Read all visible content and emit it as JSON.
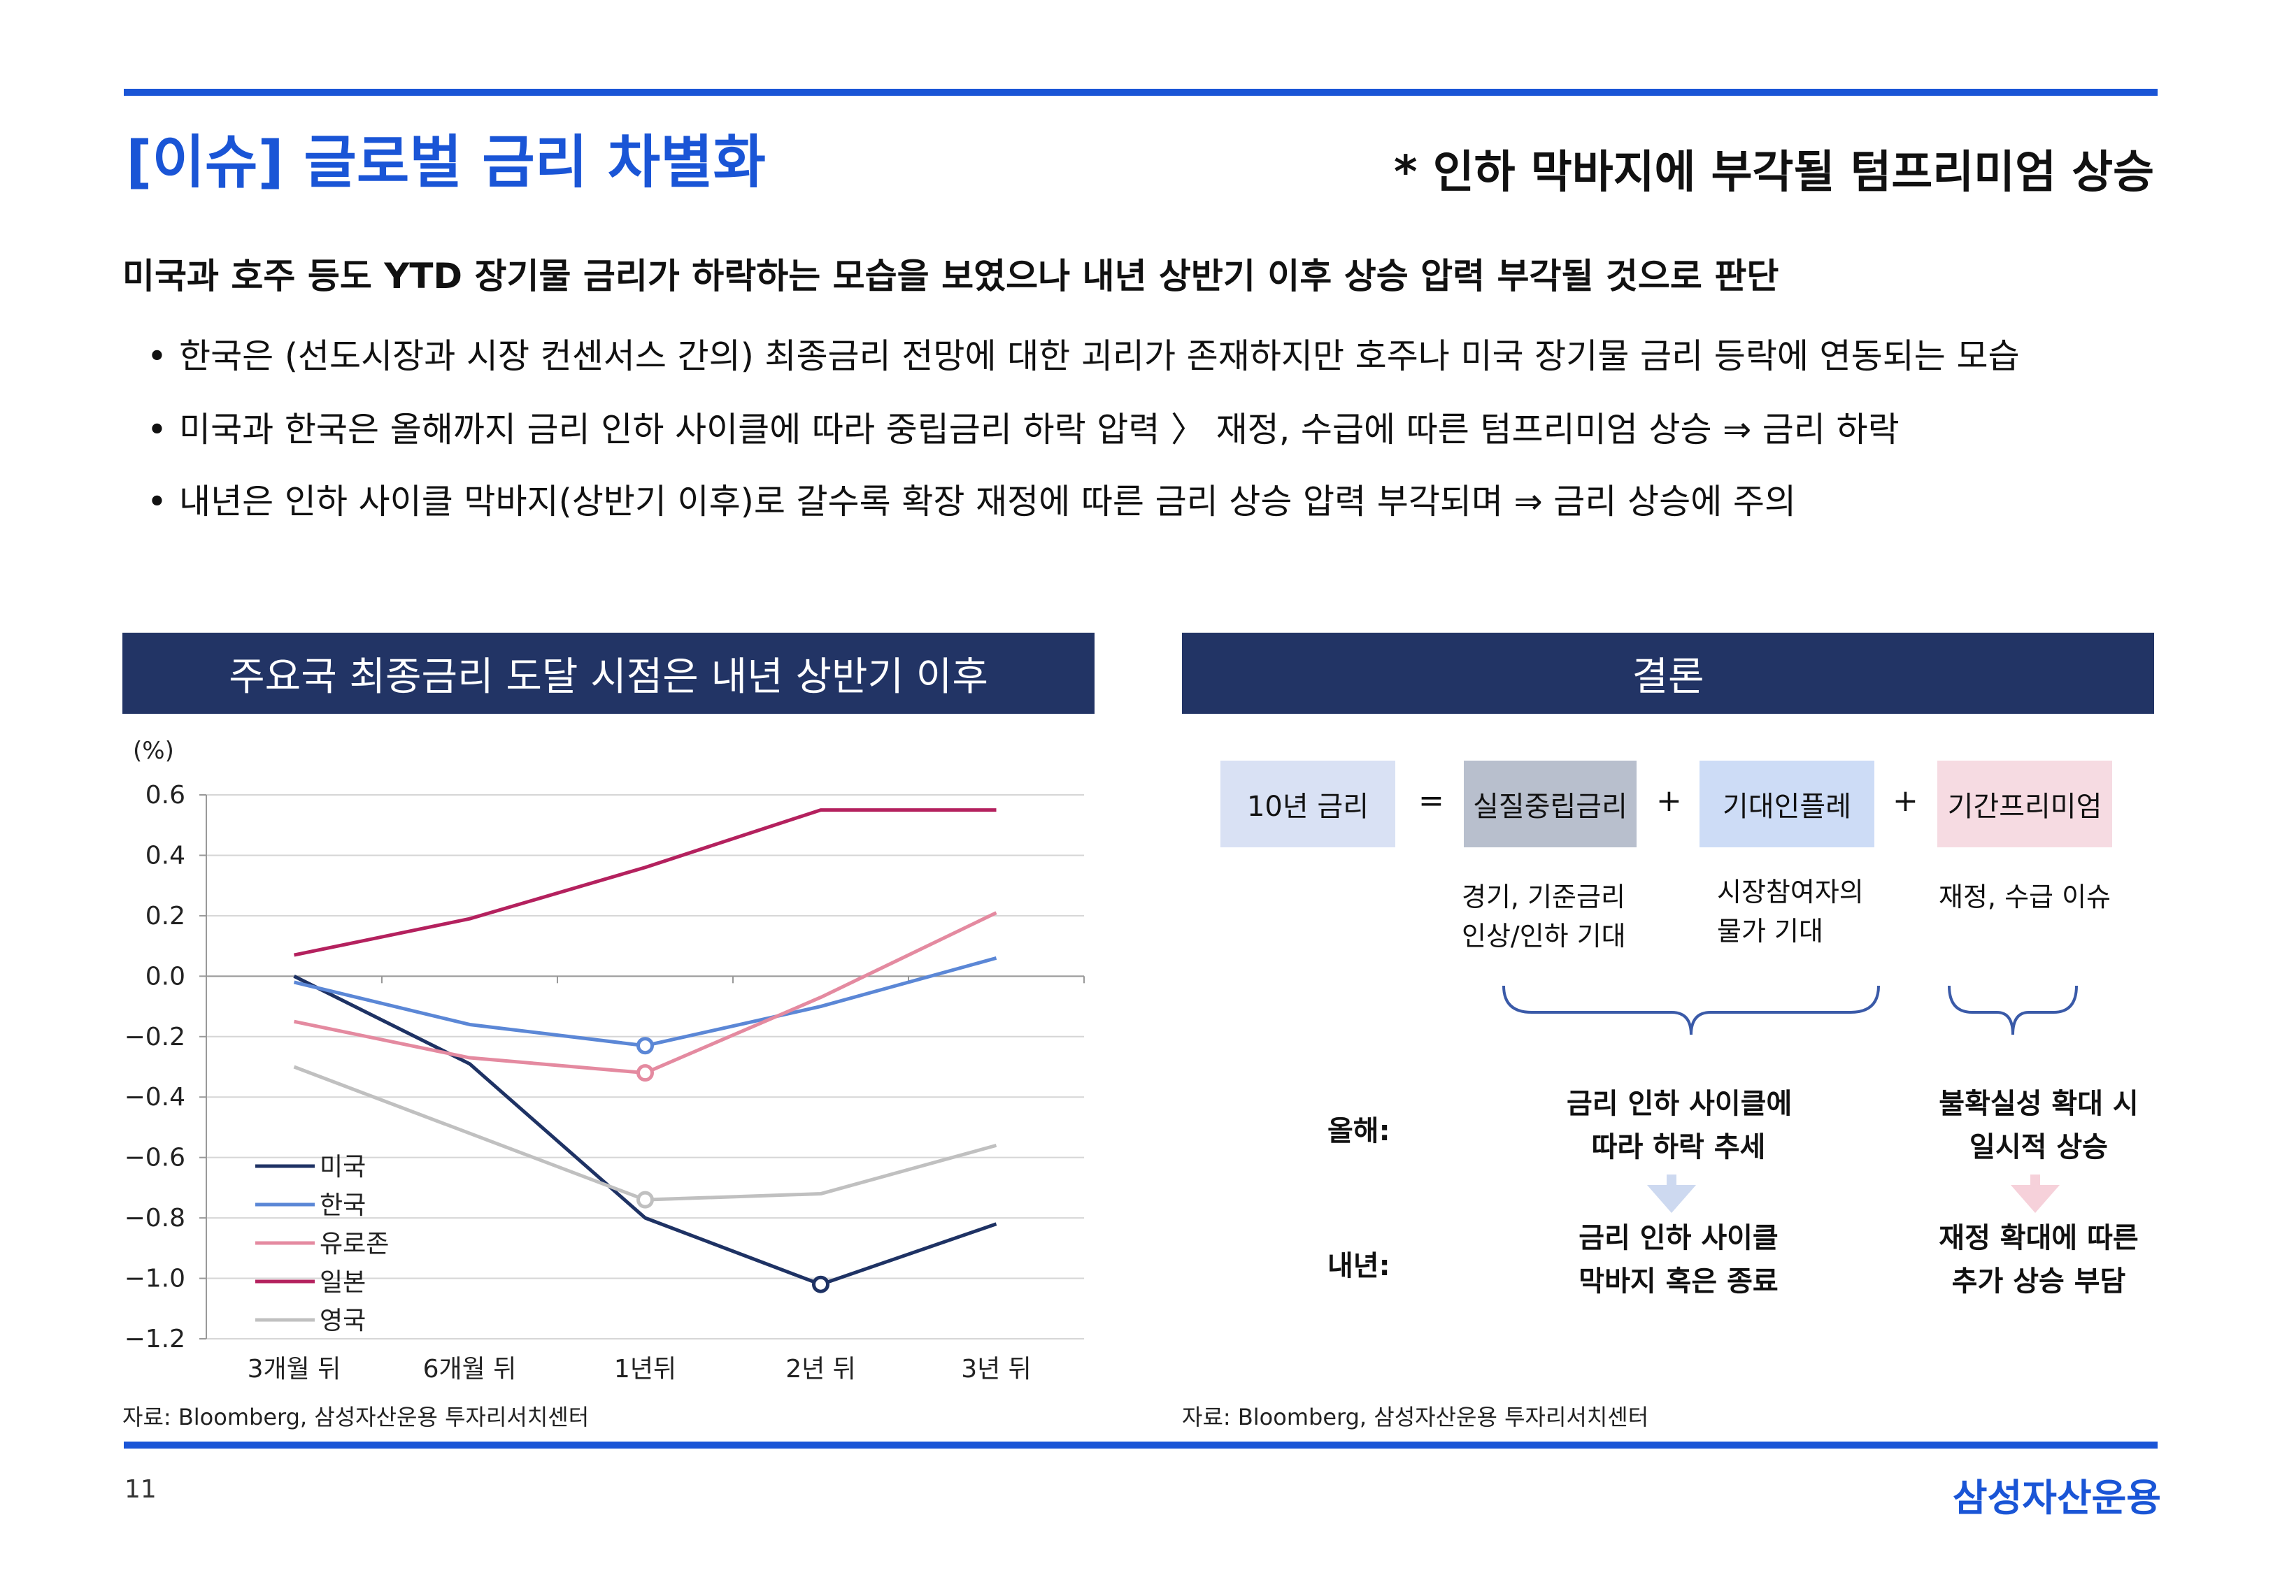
{
  "title": "[이슈] 글로벌 금리 차별화",
  "subtitle": "* 인하 막바지에 부각될 텀프리미엄 상승",
  "headline": "미국과 호주 등도 YTD 장기물 금리가 하락하는 모습을 보였으나 내년 상반기 이후 상승 압력 부각될 것으로 판단",
  "bullets": [
    "한국은 (선도시장과 시장 컨센서스 간의) 최종금리 전망에 대한 괴리가 존재하지만 호주나 미국 장기물 금리 등락에 연동되는 모습",
    "미국과 한국은 올해까지 금리 인하 사이클에 따라 중립금리 하락 압력 〉 재정, 수급에 따른 텀프리미엄 상승 ⇒ 금리 하락",
    "내년은 인하 사이클 막바지(상반기 이후)로 갈수록 확장 재정에 따른 금리 상승 압력 부각되며 ⇒ 금리 상승에 주의"
  ],
  "bullet_symbol": "•",
  "left_panel": {
    "header": "주요국 최종금리 도달 시점은 내년 상반기 이후",
    "source": "자료: Bloomberg, 삼성자산운용 투자리서치센터"
  },
  "chart_data": {
    "type": "line",
    "title": "",
    "ylabel": "(%)",
    "xlabel": "",
    "categories": [
      "3개월 뒤",
      "6개월 뒤",
      "1년뒤",
      "2년 뒤",
      "3년 뒤"
    ],
    "ylim": [
      -1.2,
      0.6
    ],
    "yticks": [
      0.6,
      0.4,
      0.2,
      0.0,
      -0.2,
      -0.4,
      -0.6,
      -0.8,
      -1.0,
      -1.2
    ],
    "ytick_labels": [
      "0.6",
      "0.4",
      "0.2",
      "0.0",
      "−0.2",
      "−0.4",
      "−0.6",
      "−0.8",
      "−1.0",
      "−1.2"
    ],
    "grid": true,
    "legend_position": "bottom-left",
    "series": [
      {
        "name": "미국",
        "color": "#1e3264",
        "values": [
          0.0,
          -0.29,
          -0.8,
          -1.02,
          -0.82
        ],
        "markers": [
          3
        ]
      },
      {
        "name": "한국",
        "color": "#5b87d6",
        "values": [
          -0.02,
          -0.16,
          -0.23,
          -0.1,
          0.06
        ],
        "markers": [
          2
        ]
      },
      {
        "name": "유로존",
        "color": "#e48aa0",
        "values": [
          -0.15,
          -0.27,
          -0.32,
          -0.07,
          0.21
        ],
        "markers": [
          2
        ]
      },
      {
        "name": "일본",
        "color": "#b4215e",
        "values": [
          0.07,
          0.19,
          0.36,
          0.55,
          0.55
        ],
        "markers": []
      },
      {
        "name": "영국",
        "color": "#c0c0c0",
        "values": [
          -0.3,
          -0.52,
          -0.74,
          -0.72,
          -0.56
        ],
        "markers": [
          2
        ]
      }
    ]
  },
  "right_panel": {
    "header": "결론",
    "source": "자료: Bloomberg, 삼성자산운용 투자리서치센터",
    "equation": {
      "box1": "10년 금리",
      "eq": "=",
      "box2": "실질중립금리",
      "plus1": "+",
      "box3": "기대인플레",
      "plus2": "+",
      "box4": "기간프리미엄"
    },
    "desc1": [
      "경기, 기준금리",
      "인상/인하 기대"
    ],
    "desc2": [
      "시장참여자의",
      "물가 기대"
    ],
    "desc3": "재정, 수급 이슈",
    "row_this_year": "올해:",
    "row_next_year": "내년:",
    "outcome_this_left": [
      "금리 인하 사이클에",
      "따라 하락 추세"
    ],
    "outcome_this_right": [
      "불확실성 확대 시",
      "일시적 상승"
    ],
    "outcome_next_left": [
      "금리 인하 사이클",
      "막바지 혹은 종료"
    ],
    "outcome_next_right": [
      "재정 확대에 따른",
      "추가 상승 부담"
    ],
    "colors": {
      "box1": "#d9e1f4",
      "box2": "#b8bfcd",
      "box3": "#cddcf6",
      "box4": "#f6dbe2",
      "arrow_blue": "#cdd9f0",
      "arrow_pink": "#f6d1da",
      "brace": "#3a5aa8"
    }
  },
  "footer": {
    "page_number": "11",
    "brand": "삼성자산운용"
  }
}
